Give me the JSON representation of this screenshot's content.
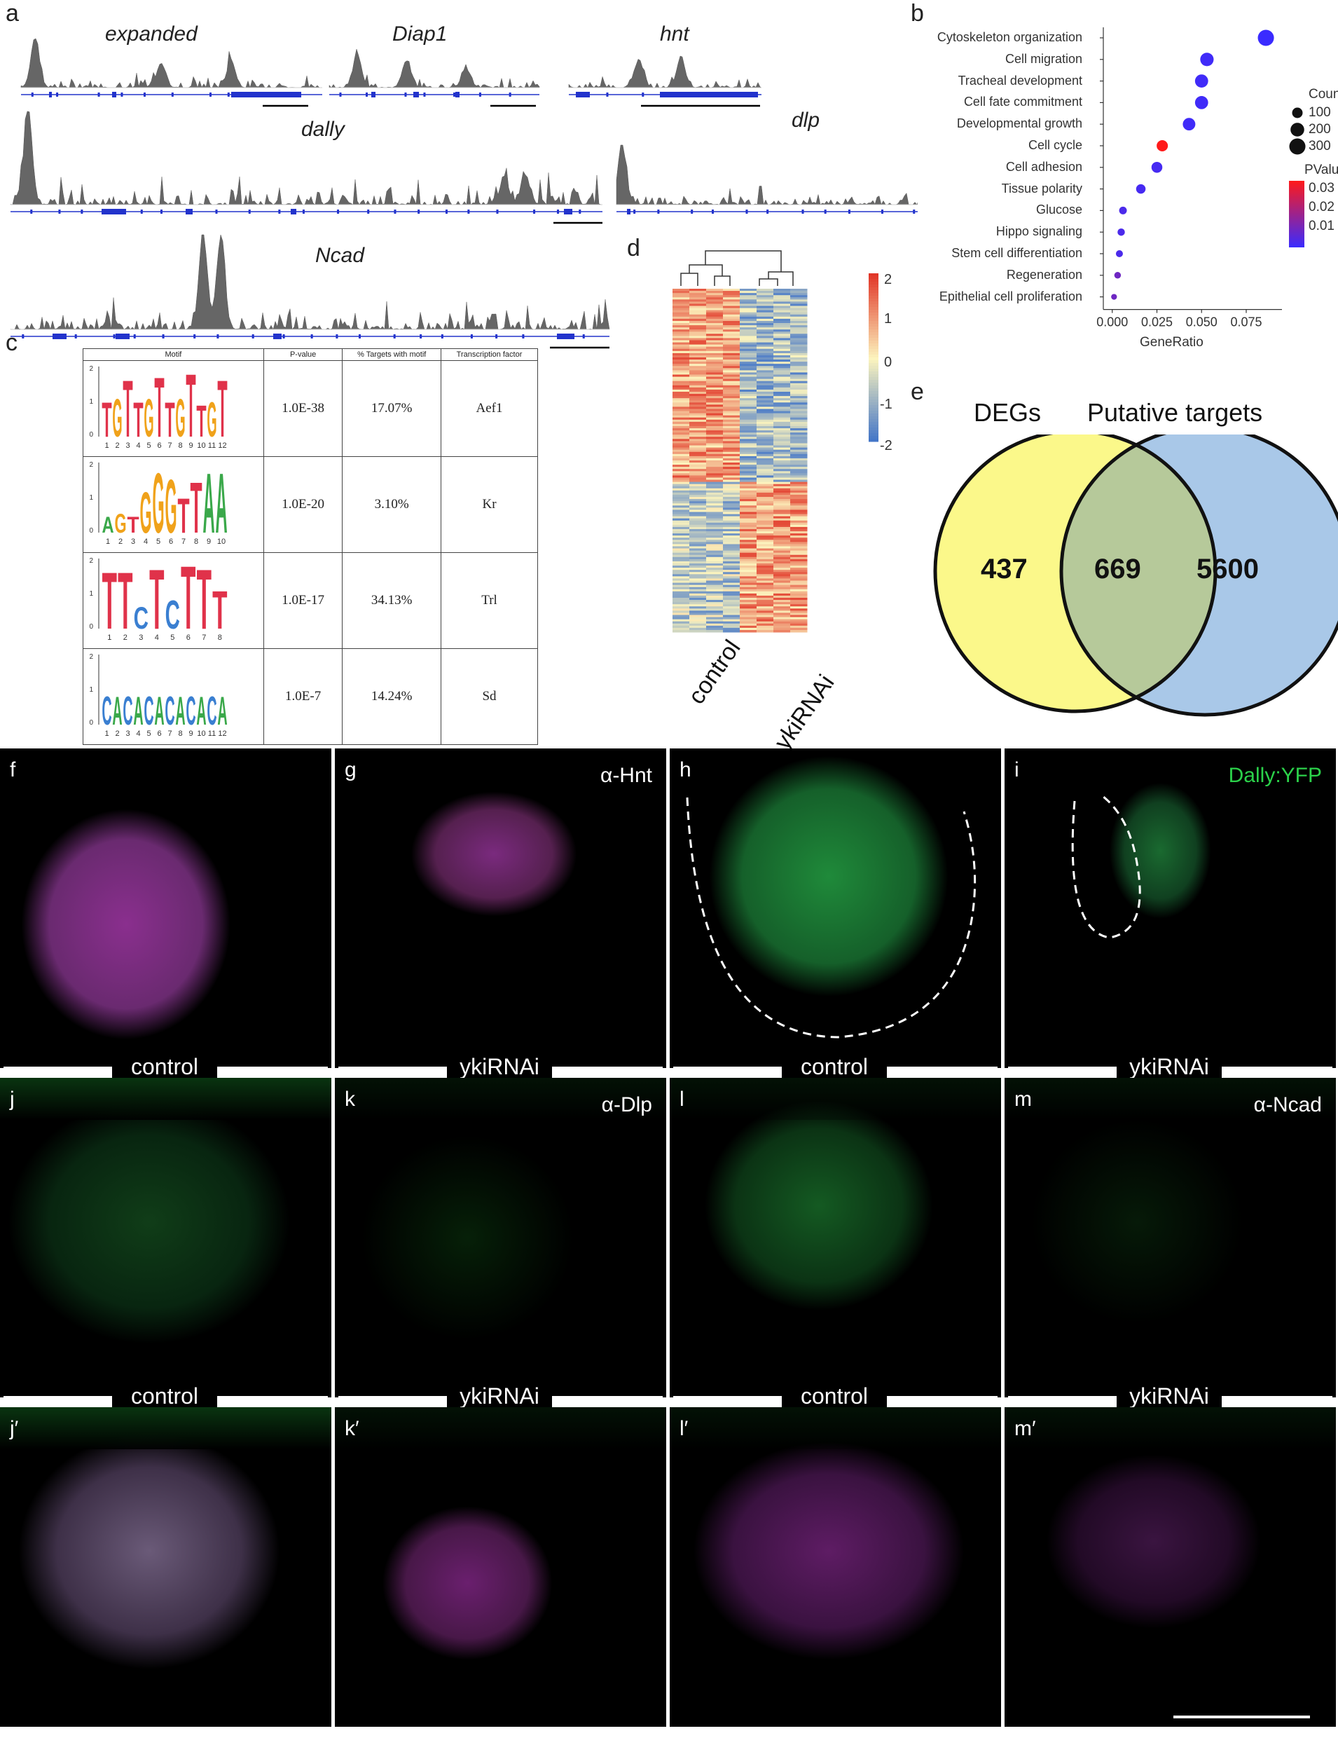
{
  "panel_letters": {
    "a": "a",
    "b": "b",
    "c": "c",
    "d": "d",
    "e": "e"
  },
  "tracks": [
    {
      "gene": "expanded"
    },
    {
      "gene": "Diap1"
    },
    {
      "gene": "hnt"
    },
    {
      "gene": "dally"
    },
    {
      "gene": "dlp"
    },
    {
      "gene": "Ncad"
    }
  ],
  "dotplot": {
    "xlabel": "GeneRatio",
    "count_legend_title": "Count",
    "pvalue_legend_title": "PValue",
    "count_legend": [
      "100",
      "200",
      "300"
    ],
    "pvalue_legend": [
      "0.03",
      "0.02",
      "0.01"
    ],
    "colors": {
      "low": "#3a2bff",
      "high": "#ff1a1a"
    }
  },
  "chart_data": [
    {
      "type": "scatter",
      "xlabel": "GeneRatio",
      "xticks": [
        "0.000",
        "0.025",
        "0.050",
        "0.075"
      ],
      "xlim": [
        -0.005,
        0.095
      ],
      "categories": [
        "Cytoskeleton organization",
        "Cell migration",
        "Tracheal development",
        "Cell fate commitment",
        "Developmental growth",
        "Cell cycle",
        "Cell adhesion",
        "Tissue polarity",
        "Glucose",
        "Hippo signaling",
        "Stem cell differentiation",
        "Regeneration",
        "Epithelial cell proliferation"
      ],
      "gene_ratio": [
        0.086,
        0.053,
        0.05,
        0.05,
        0.043,
        0.028,
        0.025,
        0.016,
        0.006,
        0.005,
        0.004,
        0.003,
        0.001
      ],
      "count": [
        300,
        190,
        180,
        180,
        160,
        120,
        110,
        75,
        40,
        35,
        30,
        25,
        15
      ],
      "pvalue": [
        0.001,
        0.002,
        0.002,
        0.002,
        0.002,
        0.035,
        0.003,
        0.003,
        0.004,
        0.004,
        0.004,
        0.01,
        0.01
      ],
      "count_legend": [
        100,
        200,
        300
      ],
      "pvalue_legend": [
        0.03,
        0.02,
        0.01
      ]
    },
    {
      "type": "heatmap",
      "columns": [
        "control",
        "control",
        "control",
        "control",
        "ykiRNAi",
        "ykiRNAi",
        "ykiRNAi",
        "ykiRNAi"
      ],
      "group_labels": [
        "control",
        "ykiRNAi"
      ],
      "scale_ticks": [
        "2",
        "1",
        "0",
        "-1",
        "-2"
      ],
      "scale_range": [
        -2,
        2
      ]
    },
    {
      "type": "venn",
      "sets": [
        {
          "name": "DEGs",
          "only": "437"
        },
        {
          "name": "Putative targets",
          "only": "5600"
        }
      ],
      "intersection": "669",
      "colors": {
        "left": "#fbf88a",
        "right": "#a9c8e8",
        "overlap": "#b6c99a"
      }
    }
  ],
  "motif_table": {
    "headers": [
      "Motif",
      "P-value",
      "% Targets with motif",
      "Transcription factor"
    ],
    "rows": [
      {
        "logo": "TGTTGTTGTTGT",
        "positions": "1 2 3 4 5 6 7 8 9 10 11 12",
        "pvalue": "1.0E-38",
        "pct": "17.07%",
        "tf": "Aef1"
      },
      {
        "logo": "CAGGTAA",
        "positions": "1 2 3 4 5 6 7 8 9 10",
        "pvalue": "1.0E-20",
        "pct": "3.10%",
        "tf": "Kr"
      },
      {
        "logo": "TTCTCTTT",
        "positions": "1 2 3 4 5 6 7 8",
        "pvalue": "1.0E-17",
        "pct": "34.13%",
        "tf": "Trl"
      },
      {
        "logo": "CACACACACACA",
        "positions": "1 2 3 4 5 6 7 8 9 10 11 12",
        "pvalue": "1.0E-7",
        "pct": "14.24%",
        "tf": "Sd"
      }
    ]
  },
  "micrographs": [
    {
      "label": "f",
      "annotation": "",
      "condition": "control"
    },
    {
      "label": "g",
      "annotation": "α-Hnt",
      "condition": "ykiRNAi"
    },
    {
      "label": "h",
      "annotation": "",
      "condition": "control"
    },
    {
      "label": "i",
      "annotation": "Dally:YFP",
      "condition": "ykiRNAi"
    },
    {
      "label": "j",
      "annotation": "",
      "condition": "control"
    },
    {
      "label": "k",
      "annotation": "α-Dlp",
      "condition": "ykiRNAi"
    },
    {
      "label": "l",
      "annotation": "",
      "condition": "control"
    },
    {
      "label": "m",
      "annotation": "α-Ncad",
      "condition": "ykiRNAi"
    },
    {
      "label": "j′",
      "annotation": "",
      "condition": ""
    },
    {
      "label": "k′",
      "annotation": "",
      "condition": ""
    },
    {
      "label": "l′",
      "annotation": "",
      "condition": ""
    },
    {
      "label": "m′",
      "annotation": "",
      "condition": ""
    }
  ]
}
